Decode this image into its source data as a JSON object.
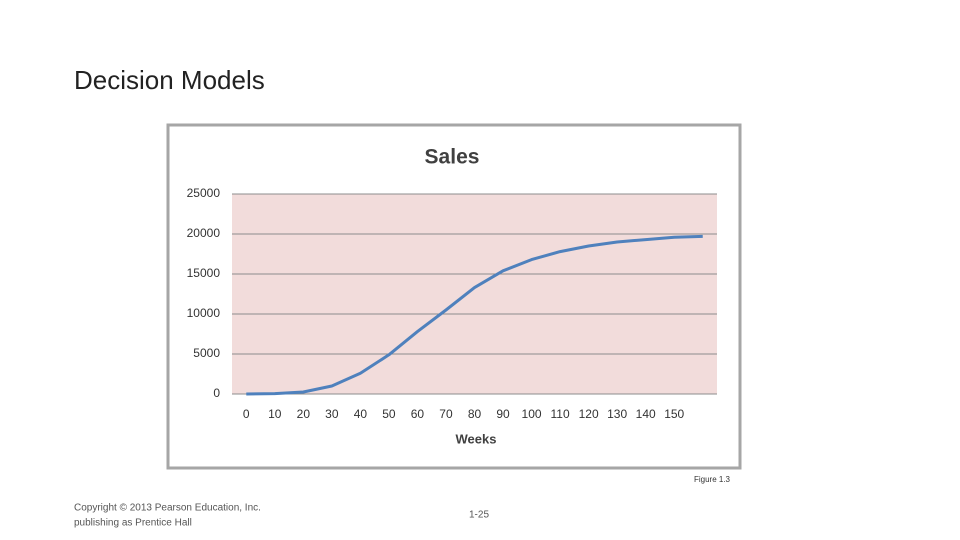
{
  "header": {
    "title": "Decision Models"
  },
  "chart_data": {
    "type": "line",
    "title": "Sales",
    "x_label": "Weeks",
    "x": [
      0,
      10,
      20,
      30,
      40,
      50,
      60,
      70,
      80,
      90,
      100,
      110,
      120,
      130,
      140,
      150,
      160
    ],
    "series": [
      {
        "name": "Sales",
        "color": "#4f81bd",
        "values": [
          0,
          50,
          250,
          1000,
          2600,
          4900,
          7800,
          10500,
          13300,
          15400,
          16800,
          17800,
          18500,
          19000,
          19300,
          19600,
          19700
        ]
      }
    ],
    "xlim": [
      -5,
      165
    ],
    "xticks": [
      0,
      10,
      20,
      30,
      40,
      50,
      60,
      70,
      80,
      90,
      100,
      110,
      120,
      130,
      140,
      150
    ],
    "ylim": [
      0,
      25000
    ],
    "yticks": [
      0,
      5000,
      10000,
      15000,
      20000,
      25000
    ],
    "grid": true,
    "plot_background": "#f2dcdb"
  },
  "caption": "Figure 1.3",
  "footer": {
    "copyright_line1": "Copyright © 2013 Pearson Education, Inc.",
    "copyright_line2": "publishing as Prentice Hall",
    "page": "1-25"
  }
}
